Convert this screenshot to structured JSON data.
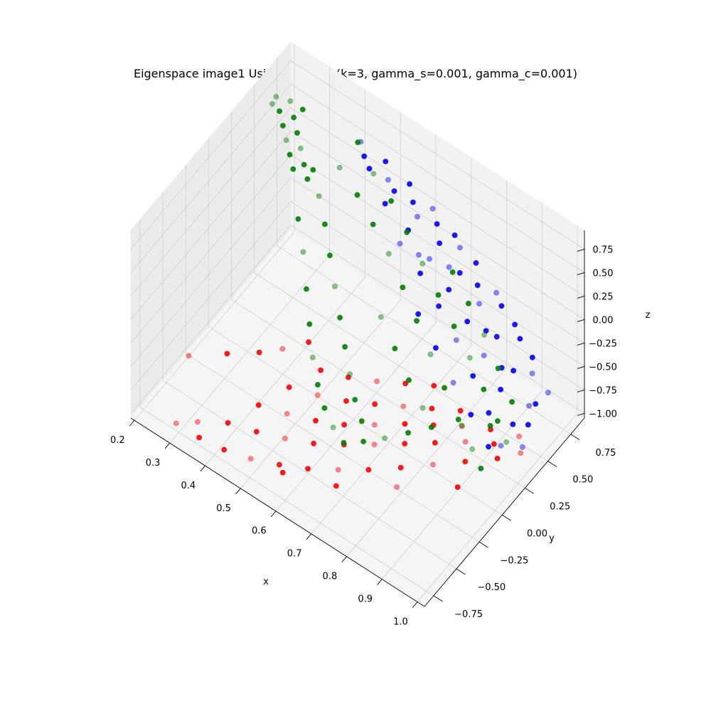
{
  "chart_data": {
    "type": "scatter",
    "projection": "3d",
    "title": "Eigenspace image1 Using ratio-cut (k=3, gamma_s=0.001, gamma_c=0.001)",
    "xlabel": "x",
    "ylabel": "y",
    "zlabel": "z",
    "grid": true,
    "legend": "none",
    "x_ticks": [
      "0.2",
      "0.3",
      "0.4",
      "0.5",
      "0.6",
      "0.7",
      "0.8",
      "0.9",
      "1.0"
    ],
    "y_ticks": [
      "−0.75",
      "−0.50",
      "−0.25",
      "0.00",
      "0.25",
      "0.50",
      "0.75"
    ],
    "z_ticks": [
      "−1.00",
      "−0.75",
      "−0.50",
      "−0.25",
      "0.00",
      "0.25",
      "0.50",
      "0.75"
    ],
    "xlim": [
      0.19,
      1.02
    ],
    "ylim": [
      -0.85,
      0.9
    ],
    "zlim": [
      -1.05,
      0.95
    ],
    "series": [
      {
        "color": "#0000ff",
        "points": [
          [
            0.46,
            0.62,
            0.86
          ],
          [
            0.52,
            0.66,
            0.75
          ],
          [
            0.58,
            0.69,
            0.62
          ],
          [
            0.64,
            0.71,
            0.48
          ],
          [
            0.7,
            0.72,
            0.33
          ],
          [
            0.76,
            0.72,
            0.18
          ],
          [
            0.82,
            0.71,
            0.02
          ],
          [
            0.88,
            0.68,
            -0.14
          ],
          [
            0.94,
            0.64,
            -0.3
          ],
          [
            1.0,
            0.58,
            -0.46
          ],
          [
            0.5,
            0.56,
            0.74
          ],
          [
            0.56,
            0.6,
            0.6
          ],
          [
            0.62,
            0.62,
            0.45
          ],
          [
            0.68,
            0.63,
            0.3
          ],
          [
            0.74,
            0.62,
            0.14
          ],
          [
            0.8,
            0.6,
            -0.02
          ],
          [
            0.86,
            0.56,
            -0.18
          ],
          [
            0.92,
            0.51,
            -0.34
          ],
          [
            0.98,
            0.45,
            -0.5
          ],
          [
            0.56,
            0.5,
            0.58
          ],
          [
            0.62,
            0.52,
            0.42
          ],
          [
            0.68,
            0.52,
            0.26
          ],
          [
            0.74,
            0.5,
            0.1
          ],
          [
            0.8,
            0.47,
            -0.06
          ],
          [
            0.86,
            0.42,
            -0.22
          ],
          [
            0.92,
            0.37,
            -0.38
          ],
          [
            0.97,
            0.31,
            -0.56
          ],
          [
            0.62,
            0.43,
            0.38
          ],
          [
            0.68,
            0.42,
            0.22
          ],
          [
            0.74,
            0.39,
            0.05
          ],
          [
            0.8,
            0.35,
            -0.12
          ],
          [
            0.86,
            0.3,
            -0.3
          ],
          [
            0.92,
            0.24,
            -0.48
          ],
          [
            0.97,
            0.18,
            -0.64
          ],
          [
            0.99,
            0.4,
            -0.62
          ],
          [
            0.98,
            0.52,
            -0.56
          ],
          [
            0.95,
            0.6,
            -0.4
          ],
          [
            0.9,
            0.66,
            -0.22
          ],
          [
            0.84,
            0.69,
            -0.05
          ],
          [
            0.72,
            0.7,
            0.27
          ],
          [
            0.66,
            0.68,
            0.4
          ],
          [
            0.6,
            0.65,
            0.52
          ],
          [
            0.54,
            0.61,
            0.66
          ],
          [
            0.48,
            0.58,
            0.8
          ],
          [
            0.78,
            0.66,
            0.06
          ],
          [
            0.72,
            0.58,
            0.2
          ],
          [
            0.84,
            0.52,
            -0.12
          ],
          [
            0.9,
            0.46,
            -0.3
          ],
          [
            0.66,
            0.48,
            0.3
          ],
          [
            0.7,
            0.32,
            -0.05
          ],
          [
            0.76,
            0.28,
            -0.22
          ],
          [
            0.82,
            0.24,
            -0.4
          ],
          [
            0.88,
            0.2,
            -0.55
          ],
          [
            0.94,
            0.16,
            -0.7
          ],
          [
            1.0,
            0.3,
            -0.72
          ]
        ]
      },
      {
        "color": "#ff0000",
        "points": [
          [
            0.3,
            -0.78,
            -0.92
          ],
          [
            0.36,
            -0.76,
            -0.95
          ],
          [
            0.42,
            -0.72,
            -0.98
          ],
          [
            0.48,
            -0.66,
            -1.0
          ],
          [
            0.54,
            -0.58,
            -1.01
          ],
          [
            0.6,
            -0.5,
            -1.0
          ],
          [
            0.66,
            -0.4,
            -0.98
          ],
          [
            0.72,
            -0.3,
            -0.95
          ],
          [
            0.78,
            -0.18,
            -0.92
          ],
          [
            0.84,
            -0.06,
            -0.88
          ],
          [
            0.9,
            0.06,
            -0.84
          ],
          [
            0.96,
            0.18,
            -0.8
          ],
          [
            1.0,
            0.28,
            -0.76
          ],
          [
            0.4,
            -0.6,
            -0.88
          ],
          [
            0.46,
            -0.52,
            -0.92
          ],
          [
            0.52,
            -0.44,
            -0.94
          ],
          [
            0.58,
            -0.36,
            -0.94
          ],
          [
            0.64,
            -0.26,
            -0.92
          ],
          [
            0.7,
            -0.16,
            -0.89
          ],
          [
            0.76,
            -0.06,
            -0.85
          ],
          [
            0.82,
            0.04,
            -0.81
          ],
          [
            0.88,
            0.14,
            -0.77
          ],
          [
            0.94,
            0.22,
            -0.74
          ],
          [
            0.44,
            -0.42,
            -0.8
          ],
          [
            0.5,
            -0.34,
            -0.84
          ],
          [
            0.56,
            -0.26,
            -0.86
          ],
          [
            0.62,
            -0.18,
            -0.85
          ],
          [
            0.68,
            -0.08,
            -0.82
          ],
          [
            0.74,
            0.02,
            -0.78
          ],
          [
            0.8,
            0.1,
            -0.74
          ],
          [
            0.86,
            0.18,
            -0.7
          ],
          [
            0.92,
            0.26,
            -0.68
          ],
          [
            0.48,
            -0.24,
            -0.72
          ],
          [
            0.54,
            -0.16,
            -0.75
          ],
          [
            0.6,
            -0.08,
            -0.76
          ],
          [
            0.66,
            0.0,
            -0.74
          ],
          [
            0.72,
            0.08,
            -0.71
          ],
          [
            0.78,
            0.16,
            -0.68
          ],
          [
            0.84,
            0.24,
            -0.65
          ],
          [
            0.25,
            -0.45,
            -0.7
          ],
          [
            0.32,
            -0.3,
            -0.68
          ],
          [
            0.38,
            -0.18,
            -0.66
          ],
          [
            0.98,
            0.34,
            -0.7
          ],
          [
            0.52,
            -0.05,
            -0.66
          ],
          [
            0.58,
            0.02,
            -0.67
          ],
          [
            0.64,
            0.1,
            -0.66
          ],
          [
            0.7,
            0.18,
            -0.63
          ],
          [
            0.76,
            0.26,
            -0.6
          ],
          [
            0.34,
            -0.7,
            -0.9
          ],
          [
            0.56,
            -0.62,
            -1.0
          ],
          [
            0.68,
            -0.5,
            -0.99
          ],
          [
            0.8,
            -0.3,
            -0.94
          ],
          [
            0.92,
            -0.1,
            -0.88
          ],
          [
            0.46,
            0.05,
            -0.62
          ],
          [
            0.42,
            -0.08,
            -0.64
          ]
        ]
      },
      {
        "color": "#008000",
        "points": [
          [
            0.2,
            0.7,
            0.62
          ],
          [
            0.22,
            0.66,
            0.56
          ],
          [
            0.24,
            0.62,
            0.5
          ],
          [
            0.26,
            0.58,
            0.44
          ],
          [
            0.28,
            0.54,
            0.38
          ],
          [
            0.3,
            0.5,
            0.32
          ],
          [
            0.23,
            0.74,
            0.6
          ],
          [
            0.25,
            0.7,
            0.52
          ],
          [
            0.27,
            0.66,
            0.45
          ],
          [
            0.29,
            0.62,
            0.38
          ],
          [
            0.31,
            0.58,
            0.3
          ],
          [
            0.33,
            0.54,
            0.24
          ],
          [
            0.21,
            0.62,
            0.66
          ],
          [
            0.26,
            0.76,
            0.56
          ],
          [
            0.32,
            0.64,
            0.2
          ],
          [
            0.36,
            0.55,
            0.12
          ],
          [
            0.4,
            0.46,
            0.02
          ],
          [
            0.44,
            0.36,
            -0.1
          ],
          [
            0.48,
            0.26,
            -0.22
          ],
          [
            0.52,
            0.16,
            -0.34
          ],
          [
            0.56,
            0.06,
            -0.44
          ],
          [
            0.6,
            -0.04,
            -0.52
          ],
          [
            0.64,
            -0.14,
            -0.58
          ],
          [
            0.68,
            -0.22,
            -0.62
          ],
          [
            0.38,
            0.7,
            0.3
          ],
          [
            0.44,
            0.66,
            0.2
          ],
          [
            0.5,
            0.6,
            0.1
          ],
          [
            0.56,
            0.54,
            0.0
          ],
          [
            0.62,
            0.46,
            -0.12
          ],
          [
            0.68,
            0.38,
            -0.24
          ],
          [
            0.74,
            0.3,
            -0.36
          ],
          [
            0.8,
            0.22,
            -0.48
          ],
          [
            0.86,
            0.14,
            -0.58
          ],
          [
            0.92,
            0.06,
            -0.66
          ],
          [
            0.96,
            0.0,
            -0.7
          ],
          [
            0.34,
            0.4,
            0.0
          ],
          [
            0.38,
            0.3,
            -0.14
          ],
          [
            0.42,
            0.18,
            -0.3
          ],
          [
            0.46,
            0.06,
            -0.44
          ],
          [
            0.5,
            -0.06,
            -0.56
          ],
          [
            0.54,
            -0.16,
            -0.64
          ],
          [
            0.58,
            -0.24,
            -0.7
          ],
          [
            0.62,
            -0.3,
            -0.74
          ],
          [
            0.66,
            -0.34,
            -0.76
          ],
          [
            0.7,
            -0.28,
            -0.72
          ],
          [
            0.74,
            -0.2,
            -0.68
          ],
          [
            0.78,
            -0.1,
            -0.64
          ],
          [
            0.82,
            0.0,
            -0.6
          ],
          [
            0.88,
            0.1,
            -0.55
          ],
          [
            0.94,
            0.18,
            -0.5
          ],
          [
            0.4,
            0.82,
            0.48
          ],
          [
            0.46,
            0.76,
            0.36
          ],
          [
            0.52,
            0.72,
            0.26
          ],
          [
            0.58,
            0.66,
            0.14
          ],
          [
            0.64,
            0.6,
            0.02
          ],
          [
            0.7,
            0.54,
            -0.1
          ],
          [
            0.76,
            0.48,
            -0.22
          ],
          [
            0.82,
            0.42,
            -0.34
          ],
          [
            0.88,
            0.34,
            -0.44
          ],
          [
            0.94,
            0.26,
            -0.54
          ],
          [
            0.98,
            0.2,
            -0.6
          ],
          [
            0.72,
            0.62,
            0.1
          ],
          [
            0.78,
            0.56,
            -0.02
          ],
          [
            0.84,
            0.5,
            -0.14
          ],
          [
            0.9,
            0.42,
            -0.26
          ],
          [
            0.96,
            0.34,
            -0.38
          ],
          [
            0.6,
            0.3,
            -0.3
          ],
          [
            0.66,
            0.22,
            -0.4
          ],
          [
            0.72,
            0.14,
            -0.5
          ],
          [
            0.78,
            0.06,
            -0.56
          ]
        ]
      }
    ]
  }
}
